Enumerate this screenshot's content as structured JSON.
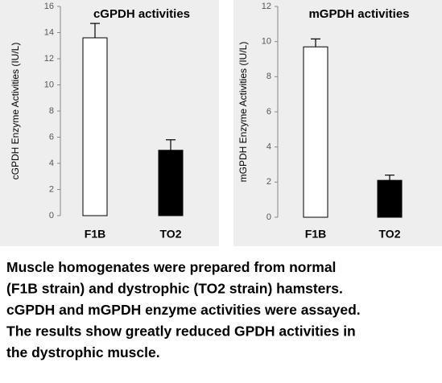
{
  "chart_data": [
    {
      "type": "bar",
      "title": "cGPDH activities",
      "y_label": "cGPDH Enzyme Activities (IU/L)",
      "categories": [
        "F1B",
        "TO2"
      ],
      "values": [
        13.6,
        5.0
      ],
      "errors": [
        1.1,
        0.8
      ],
      "colors": [
        "#ffffff",
        "#000000"
      ],
      "ylim": [
        0,
        16
      ],
      "yticks": [
        0,
        2,
        4,
        6,
        8,
        10,
        12,
        14,
        16
      ]
    },
    {
      "type": "bar",
      "title": "mGPDH activities",
      "y_label": "mGPDH Enzyme Activities (IU/L)",
      "categories": [
        "F1B",
        "TO2"
      ],
      "values": [
        9.7,
        2.1
      ],
      "errors": [
        0.45,
        0.3
      ],
      "colors": [
        "#ffffff",
        "#000000"
      ],
      "ylim": [
        0,
        12
      ],
      "yticks": [
        0,
        2,
        4,
        6,
        8,
        10,
        12
      ]
    }
  ],
  "caption": [
    "Muscle homogenates were prepared from normal",
    "(F1B strain) and dystrophic (TO2 strain) hamsters.",
    "cGPDH and mGPDH enzyme activities were assayed.",
    "The results show greatly reduced GPDH activities in",
    "the dystrophic muscle."
  ]
}
